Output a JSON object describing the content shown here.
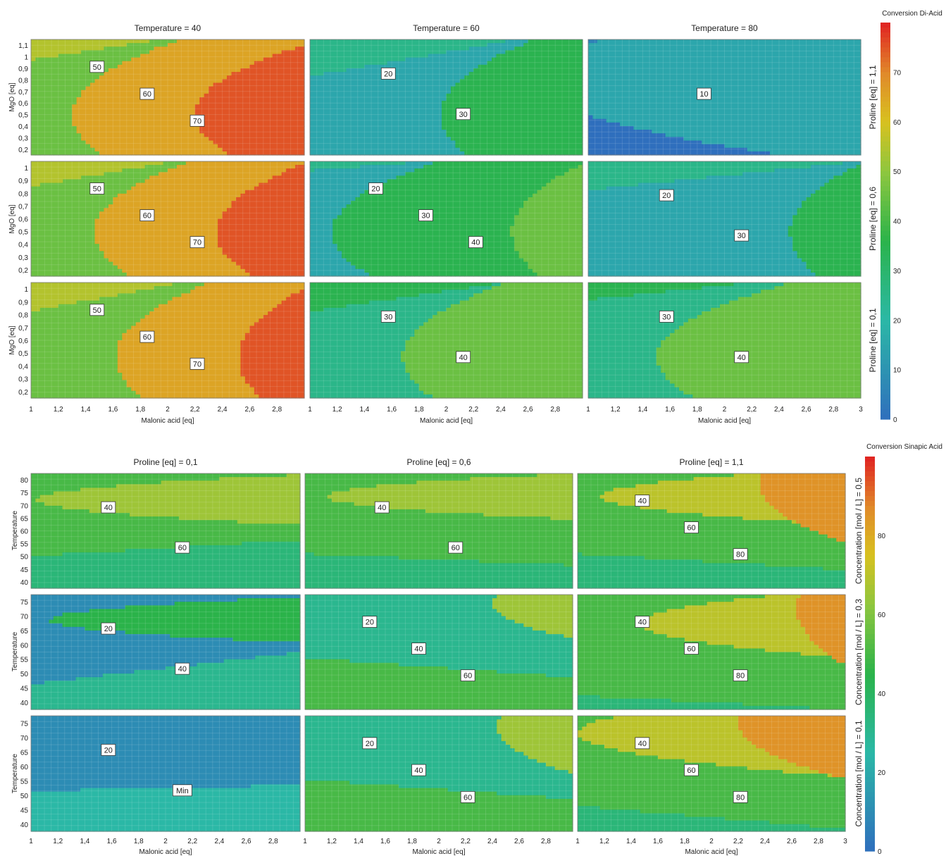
{
  "chart_data": [
    {
      "type": "contour",
      "colorbar_title": "Conversion Di-Acid",
      "colorbar_ticks": [
        "0",
        "10",
        "20",
        "30",
        "40",
        "50",
        "60",
        "70"
      ],
      "colorbar_range": [
        0,
        80
      ],
      "xlabel": "Malonic acid [eq]",
      "ylabel": "MgO [eq]",
      "x_ticks_a": [
        "1",
        "1,2",
        "1,4",
        "1,6",
        "1,8",
        "2",
        "2,2",
        "2,4",
        "2,6",
        "2,8"
      ],
      "x_ticks_b": [
        "1",
        "1,2",
        "1,4",
        "1,6",
        "1,8",
        "2",
        "2,2",
        "2,4",
        "2,6",
        "2,8",
        "3"
      ],
      "y_ticks_top": [
        "1,1",
        "1",
        "0,9",
        "0,8",
        "0,7",
        "0,6",
        "0,5",
        "0,4",
        "0,3",
        "0,2"
      ],
      "y_ticks": [
        "1",
        "0,9",
        "0,8",
        "0,7",
        "0,6",
        "0,5",
        "0,4",
        "0,3",
        "0,2"
      ],
      "col_titles": [
        "Temperature = 40",
        "Temperature = 60",
        "Temperature = 80"
      ],
      "row_titles": [
        "Proline [eq] = 1,1",
        "Proline [eq] = 0,6",
        "Proline [eq] = 0,1"
      ],
      "panels": [
        {
          "levels": [
            50,
            60,
            70
          ],
          "labels": [
            "50",
            "60",
            "70"
          ]
        },
        {
          "levels": [
            20,
            30
          ],
          "labels": [
            "20",
            "30"
          ]
        },
        {
          "levels": [
            0,
            10
          ],
          "labels": [
            "10"
          ]
        },
        {
          "levels": [
            50,
            60,
            70
          ],
          "labels": [
            "50",
            "60",
            "70"
          ]
        },
        {
          "levels": [
            20,
            30,
            40
          ],
          "labels": [
            "20",
            "30",
            "40"
          ]
        },
        {
          "levels": [
            20,
            30
          ],
          "labels": [
            "20",
            "30"
          ]
        },
        {
          "levels": [
            50,
            60,
            70
          ],
          "labels": [
            "50",
            "60",
            "70"
          ]
        },
        {
          "levels": [
            30,
            40
          ],
          "labels": [
            "30",
            "40"
          ]
        },
        {
          "levels": [
            30,
            40
          ],
          "labels": [
            "30",
            "40"
          ]
        }
      ]
    },
    {
      "type": "contour",
      "colorbar_title": "Conversion Sinapic Acid",
      "colorbar_ticks": [
        "0",
        "20",
        "40",
        "60",
        "80"
      ],
      "colorbar_range": [
        0,
        100
      ],
      "xlabel": "Malonic acid [eq]",
      "ylabel": "Temperature",
      "x_ticks_a": [
        "1",
        "1,2",
        "1,4",
        "1,6",
        "1,8",
        "2",
        "2,2",
        "2,4",
        "2,6",
        "2,8"
      ],
      "x_ticks_b": [
        "1",
        "1,2",
        "1,4",
        "1,6",
        "1,8",
        "2",
        "2,2",
        "2,4",
        "2,6",
        "2,8",
        "3"
      ],
      "y_ticks_top": [
        "80",
        "75",
        "70",
        "65",
        "60",
        "55",
        "50",
        "45",
        "40"
      ],
      "y_ticks": [
        "75",
        "70",
        "65",
        "60",
        "55",
        "50",
        "45",
        "40"
      ],
      "col_titles": [
        "Proline [eq] = 0,1",
        "Proline [eq] = 0,6",
        "Proline [eq] = 1,1"
      ],
      "row_titles": [
        "Concentration [mol / L] = 0,5",
        "Concentration [mol / L] = 0,3",
        "Concentration [mol / L] = 0,1"
      ],
      "panels": [
        {
          "levels": [
            40,
            60
          ],
          "labels": [
            "40",
            "60"
          ]
        },
        {
          "levels": [
            40,
            60
          ],
          "labels": [
            "40",
            "60"
          ]
        },
        {
          "levels": [
            40,
            60,
            80
          ],
          "labels": [
            "40",
            "60",
            "80"
          ]
        },
        {
          "levels": [
            0,
            20,
            40
          ],
          "labels": [
            "20",
            "40"
          ]
        },
        {
          "levels": [
            20,
            40,
            60
          ],
          "labels": [
            "20",
            "40",
            "60"
          ]
        },
        {
          "levels": [
            40,
            60,
            80
          ],
          "labels": [
            "40",
            "60",
            "80"
          ]
        },
        {
          "levels": [
            0,
            20
          ],
          "labels": [
            "20",
            "Min"
          ]
        },
        {
          "levels": [
            20,
            40,
            60
          ],
          "labels": [
            "20",
            "40",
            "60"
          ]
        },
        {
          "levels": [
            40,
            60,
            80
          ],
          "labels": [
            "40",
            "60",
            "80"
          ]
        }
      ]
    }
  ]
}
